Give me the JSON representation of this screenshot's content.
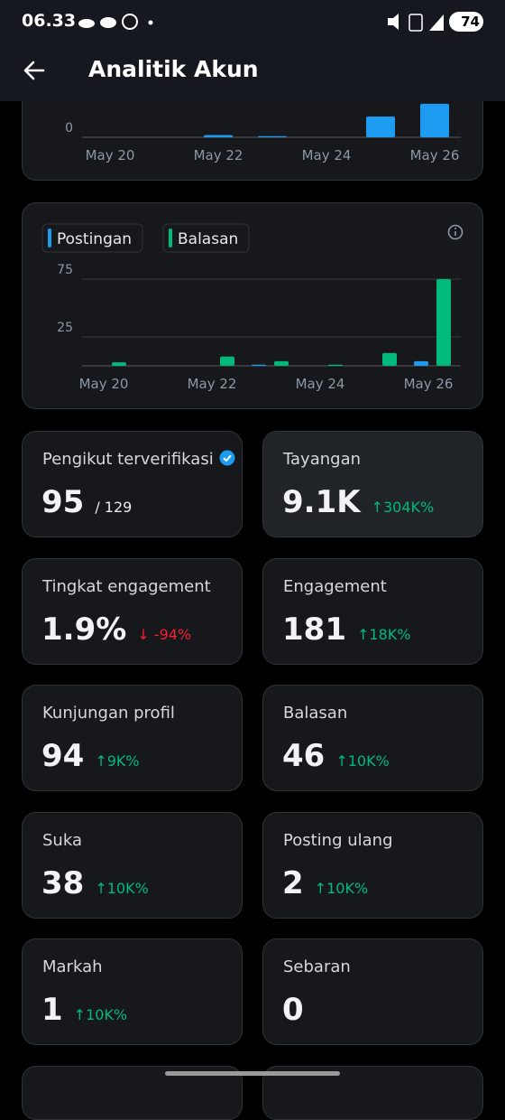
{
  "status_bar": {
    "time": "06.33",
    "battery": "74"
  },
  "header": {
    "title": "Analitik Akun"
  },
  "chart_data": [
    {
      "type": "bar",
      "categories": [
        "May 20",
        null,
        "May 22",
        null,
        "May 24",
        null,
        "May 26"
      ],
      "series": [
        {
          "color": "#1d9bf0",
          "values": [
            0,
            0,
            2,
            1,
            0,
            18,
            29
          ]
        }
      ],
      "ylim": [
        0,
        90
      ],
      "yticks": [
        0
      ]
    },
    {
      "type": "bar",
      "categories": [
        "May 20",
        null,
        "May 22",
        null,
        "May 24",
        null,
        "May 26"
      ],
      "series": [
        {
          "name": "Postingan",
          "color": "#1d9bf0",
          "values": [
            0,
            0,
            0,
            1,
            0,
            0,
            4
          ]
        },
        {
          "name": "Balasan",
          "color": "#00ba7c",
          "values": [
            3,
            0,
            8,
            4,
            1,
            11,
            75
          ]
        }
      ],
      "ylim": [
        0,
        90
      ],
      "yticks": [
        25,
        75
      ]
    }
  ],
  "cards": [
    {
      "label": "Pengikut terverifikasi",
      "value": "95",
      "total": "/ 129"
    },
    {
      "label": "Tayangan",
      "value": "9.1K",
      "change": "↑304K%",
      "change_color": "#00ba7c"
    },
    {
      "label": "Tingkat engagement",
      "value": "1.9%",
      "change": "↓ -94%",
      "change_color": "#f4212e"
    },
    {
      "label": "Engagement",
      "value": "181",
      "change": "↑18K%",
      "change_color": "#00ba7c"
    },
    {
      "label": "Kunjungan profil",
      "value": "94",
      "change": "↑9K%",
      "change_color": "#00ba7c"
    },
    {
      "label": "Balasan",
      "value": "46",
      "change": "↑10K%",
      "change_color": "#00ba7c"
    },
    {
      "label": "Suka",
      "value": "38",
      "change": "↑10K%",
      "change_color": "#00ba7c"
    },
    {
      "label": "Posting ulang",
      "value": "2",
      "change": "↑10K%",
      "change_color": "#00ba7c"
    },
    {
      "label": "Markah",
      "value": "1",
      "change": "↑10K%",
      "change_color": "#00ba7c"
    },
    {
      "label": "Sebaran",
      "value": "0"
    }
  ]
}
